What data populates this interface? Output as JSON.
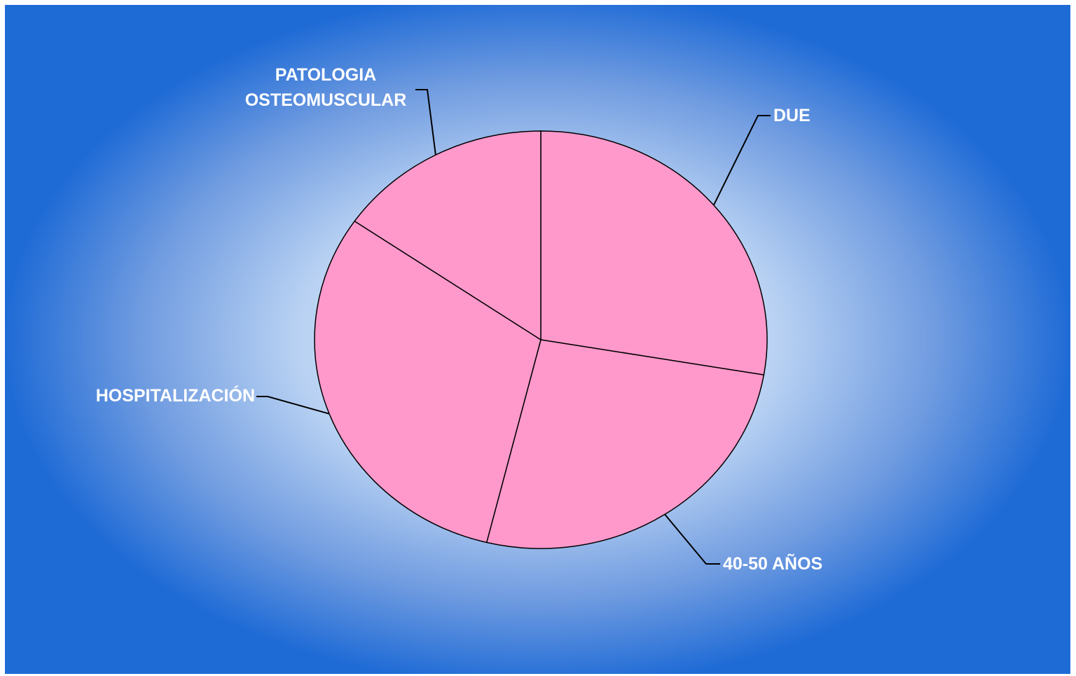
{
  "chart_data": {
    "type": "pie",
    "categories": [
      "DUE",
      "40-50 AÑOS",
      "HOSPITALIZACIÓN",
      "PATOLOGIA OSTEOMUSCULAR"
    ],
    "values": [
      18,
      17,
      20,
      10
    ],
    "color": "#ff99cc"
  }
}
